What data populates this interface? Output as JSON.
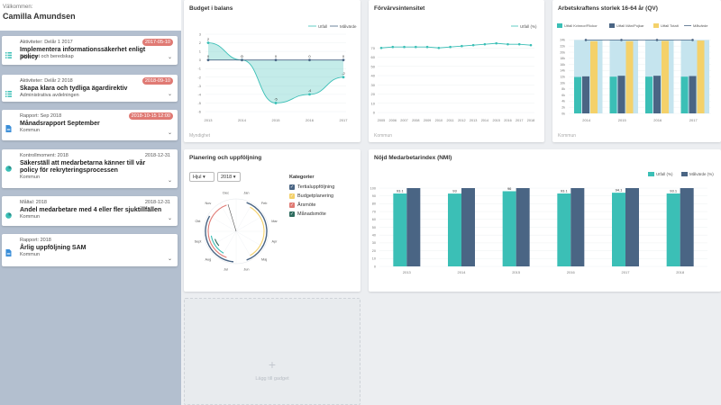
{
  "welcome": {
    "label": "Välkommen:",
    "name": "Camilla Amundsen"
  },
  "tasks": [
    {
      "meta": "Aktiviteter: Delår 1 2017",
      "date": "2017-05-10",
      "overdue": true,
      "title": "Implementera informationssäkerhet enligt policy",
      "sub": "Säkerhet och beredskap",
      "icon": "list-icon"
    },
    {
      "meta": "Aktiviteter: Delår 2 2018",
      "date": "2018-09-10",
      "overdue": true,
      "title": "Skapa klara och tydliga ägardirektiv",
      "sub": "Administrativa avdelningen",
      "icon": "list-icon"
    },
    {
      "meta": "Rapport: Sep 2018",
      "date": "2018-10-15 12:00",
      "overdue": true,
      "title": "Månadsrapport September",
      "sub": "Kommun",
      "icon": "document-icon"
    },
    {
      "meta": "Kontrollmoment: 2018",
      "date": "2018-12-31",
      "overdue": false,
      "title": "Säkerställ att medarbetarna känner till vår policy för rekryteringsprocessen",
      "sub": "Kommun",
      "icon": "pie-icon"
    },
    {
      "meta": "Måltal: 2018",
      "date": "2018-12-31",
      "overdue": false,
      "title": "Andel medarbetare med 4 eller fler sjuktillfällen",
      "sub": "Kommun",
      "icon": "pie-icon"
    },
    {
      "meta": "Rapport: 2018",
      "date": "",
      "overdue": false,
      "title": "Årlig uppföljning SAM",
      "sub": "Kommun",
      "icon": "document-icon"
    }
  ],
  "widgets": {
    "budget": {
      "title": "Budget i balans",
      "source": "Myndighet",
      "legend": [
        "Utfall",
        "Målvärde"
      ]
    },
    "forvarv": {
      "title": "Förvärvsintensitet",
      "source": "Kommun",
      "legend": [
        "Utfall (%)"
      ]
    },
    "arbetskraft": {
      "title": "Arbetskraftens storlek 16-64 år (QV)",
      "source": "Kommun",
      "legend": [
        "Utfall Kvinnor/Flickor",
        "Utfall Män/Pojkar",
        "Utfall Totalt",
        "Målvärde"
      ]
    },
    "planering": {
      "title": "Planering och uppföljning",
      "view_select": "Hjul",
      "year_select": "2018",
      "categories_title": "Kategorier",
      "categories": [
        "Tertialuppföljning",
        "Budgetplanering",
        "Årsmöte",
        "Månadsmöte"
      ]
    },
    "nmi": {
      "title": "Nöjd Medarbetarindex (NMI)",
      "legend": [
        "Utfall (%)",
        "Målvärde (%)"
      ]
    },
    "add": {
      "label": "Lägg till gadget"
    }
  },
  "colors": {
    "teal": "#3bbfb6",
    "navy": "#4a6584",
    "yellow": "#f4d16a",
    "red": "#e07a74",
    "green": "#2e6b5e"
  },
  "chart_data": [
    {
      "type": "area",
      "name": "budget",
      "x": [
        "2013",
        "2014",
        "2015",
        "2016",
        "2017"
      ],
      "series": [
        {
          "name": "Utfall",
          "values": [
            2,
            0,
            -5,
            -4,
            -2
          ]
        },
        {
          "name": "Målvärde",
          "values": [
            0,
            0,
            0,
            0,
            0
          ]
        }
      ],
      "ylim": [
        -6,
        3
      ]
    },
    {
      "type": "line",
      "name": "forvarv",
      "x": [
        "2005",
        "2006",
        "2007",
        "2008",
        "2009",
        "2010",
        "2011",
        "2012",
        "2013",
        "2014",
        "2015",
        "2016",
        "2017",
        "2018"
      ],
      "series": [
        {
          "name": "Utfall (%)",
          "values": [
            70,
            71,
            71,
            71,
            71,
            70,
            71,
            72,
            73,
            74,
            75,
            74,
            74,
            73
          ]
        }
      ],
      "ylim": [
        0,
        80
      ],
      "yticks": [
        0,
        10,
        20,
        30,
        40,
        50,
        60,
        70
      ]
    },
    {
      "type": "bar",
      "name": "arbetskraft",
      "categories": [
        "2014",
        "2015",
        "2016",
        "2017"
      ],
      "series": [
        {
          "name": "Utfall Kvinnor/Flickor",
          "values": [
            11.9,
            12,
            12,
            12
          ]
        },
        {
          "name": "Utfall Män/Pojkar",
          "values": [
            12.1,
            12.3,
            12.3,
            12.2
          ]
        },
        {
          "name": "Utfall Totalt",
          "values": [
            23.6,
            23.6,
            23.7,
            23.8
          ]
        },
        {
          "name": "Målvärde",
          "values": [
            24,
            24,
            24,
            24
          ]
        }
      ],
      "ylim": [
        0,
        25
      ],
      "yticks": [
        0,
        2,
        4,
        6,
        8,
        10,
        12,
        14,
        16,
        18,
        20,
        22,
        24
      ]
    },
    {
      "type": "bar",
      "name": "nmi",
      "categories": [
        "2013",
        "2014",
        "2015",
        "2016",
        "2017",
        "2018"
      ],
      "series": [
        {
          "name": "Utfall (%)",
          "values": [
            93.1,
            93,
            96,
            93.1,
            94.1,
            93.1
          ]
        },
        {
          "name": "Målvärde (%)",
          "values": [
            100,
            100,
            100,
            100,
            100,
            100
          ]
        }
      ],
      "labels": [
        "93.1",
        "93",
        "96",
        "93.1",
        "94.1",
        "93.1"
      ],
      "ylim": [
        0,
        100
      ],
      "yticks": [
        0,
        10,
        20,
        30,
        40,
        50,
        60,
        70,
        80,
        90,
        100
      ]
    },
    {
      "type": "pie",
      "name": "planering-wheel",
      "months": [
        "Jan",
        "Feb",
        "Mar",
        "Apr",
        "Maj",
        "Jun",
        "Jul",
        "Aug",
        "Sept",
        "Okt",
        "Nov",
        "Dec"
      ]
    }
  ]
}
